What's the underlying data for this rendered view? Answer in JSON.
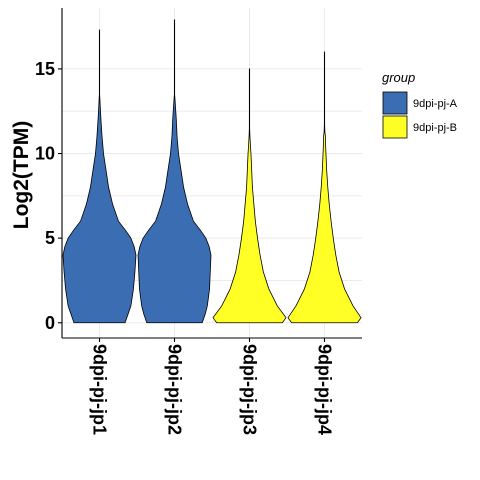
{
  "chart_data": {
    "type": "violin",
    "ylabel": "Log2(TPM)",
    "xlabel": "",
    "ylim": [
      -0.9,
      18.6
    ],
    "yticks": [
      0,
      5,
      10,
      15
    ],
    "grid": true,
    "legend": {
      "title": "group",
      "placement": "right"
    },
    "groups": [
      {
        "name": "9dpi-pj-A",
        "color": "#3a6db1"
      },
      {
        "name": "9dpi-pj-B",
        "color": "#ffff26"
      }
    ],
    "categories": [
      "9dpi-pj-jp1",
      "9dpi-pj-jp2",
      "9dpi-pj-jp3",
      "9dpi-pj-jp4"
    ],
    "series": [
      {
        "category": "9dpi-pj-jp1",
        "group": "9dpi-pj-A",
        "profile": [
          [
            0,
            0.7
          ],
          [
            0.5,
            0.78
          ],
          [
            1,
            0.86
          ],
          [
            2,
            0.93
          ],
          [
            3,
            0.97
          ],
          [
            4,
            1.0
          ],
          [
            4.5,
            0.95
          ],
          [
            5,
            0.86
          ],
          [
            5.5,
            0.7
          ],
          [
            6,
            0.52
          ],
          [
            7,
            0.36
          ],
          [
            8,
            0.25
          ],
          [
            9,
            0.18
          ],
          [
            10,
            0.11
          ],
          [
            11,
            0.07
          ],
          [
            12,
            0.04
          ],
          [
            12.8,
            0.02
          ],
          [
            13.5,
            0.004
          ],
          [
            17.3,
            0.004
          ]
        ]
      },
      {
        "category": "9dpi-pj-jp2",
        "group": "9dpi-pj-A",
        "profile": [
          [
            0,
            0.76
          ],
          [
            0.5,
            0.84
          ],
          [
            1,
            0.9
          ],
          [
            2,
            0.96
          ],
          [
            3,
            0.98
          ],
          [
            4,
            1.0
          ],
          [
            4.5,
            0.95
          ],
          [
            5,
            0.86
          ],
          [
            5.5,
            0.7
          ],
          [
            6,
            0.52
          ],
          [
            7,
            0.36
          ],
          [
            8,
            0.25
          ],
          [
            9,
            0.18
          ],
          [
            10,
            0.11
          ],
          [
            11,
            0.07
          ],
          [
            12,
            0.05
          ],
          [
            13,
            0.02
          ],
          [
            13.5,
            0.004
          ],
          [
            17.9,
            0.004
          ]
        ]
      },
      {
        "category": "9dpi-pj-jp3",
        "group": "9dpi-pj-B",
        "profile": [
          [
            0,
            0.9
          ],
          [
            0.3,
            1.0
          ],
          [
            1,
            0.76
          ],
          [
            2,
            0.53
          ],
          [
            3,
            0.38
          ],
          [
            4,
            0.29
          ],
          [
            5,
            0.22
          ],
          [
            6,
            0.16
          ],
          [
            7,
            0.12
          ],
          [
            8,
            0.08
          ],
          [
            9,
            0.06
          ],
          [
            10,
            0.04
          ],
          [
            10.5,
            0.025
          ],
          [
            11.1,
            0.01
          ],
          [
            11.5,
            0.004
          ],
          [
            15,
            0.004
          ]
        ]
      },
      {
        "category": "9dpi-pj-jp4",
        "group": "9dpi-pj-B",
        "profile": [
          [
            0,
            0.9
          ],
          [
            0.3,
            1.0
          ],
          [
            1,
            0.78
          ],
          [
            2,
            0.55
          ],
          [
            3,
            0.4
          ],
          [
            4,
            0.31
          ],
          [
            5,
            0.24
          ],
          [
            6,
            0.18
          ],
          [
            7,
            0.13
          ],
          [
            8,
            0.09
          ],
          [
            9,
            0.06
          ],
          [
            10,
            0.04
          ],
          [
            10.5,
            0.03
          ],
          [
            11,
            0.025
          ],
          [
            11.3,
            0.01
          ],
          [
            11.7,
            0.004
          ],
          [
            16,
            0.004
          ]
        ]
      }
    ]
  }
}
